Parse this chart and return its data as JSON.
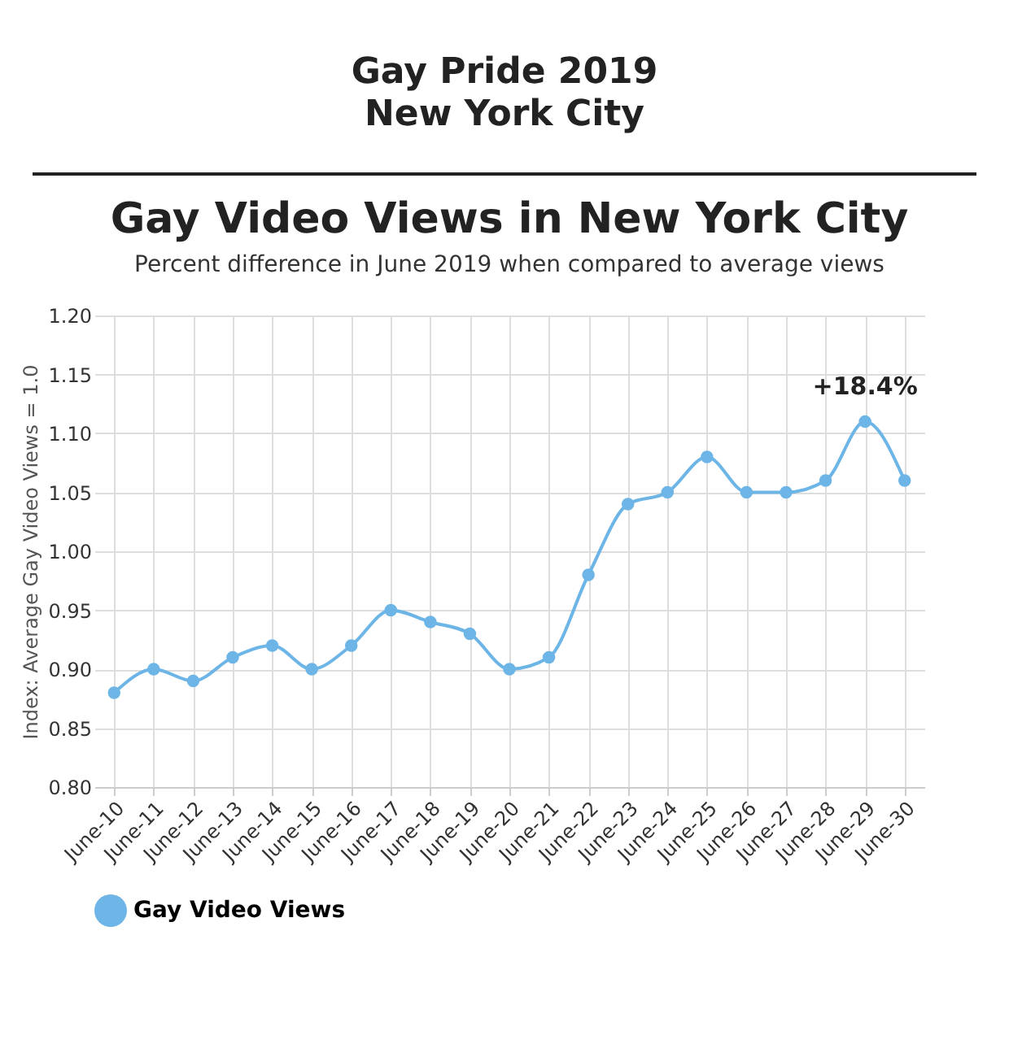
{
  "chart_data": {
    "type": "line",
    "title": "Gay Video Views in New York City",
    "subtitle": "Percent difference in June 2019 when compared to average views",
    "ylabel": "Index: Average Gay Video Views = 1.0",
    "annotations": [
      "Gay Pride 2019\nNew York City",
      {
        "text": "+18.4%",
        "x": "June-29",
        "y": 1.11
      }
    ],
    "categories": [
      "June-10",
      "June-11",
      "June-12",
      "June-13",
      "June-14",
      "June-15",
      "June-16",
      "June-17",
      "June-18",
      "June-19",
      "June-20",
      "June-21",
      "June-22",
      "June-23",
      "June-24",
      "June-25",
      "June-26",
      "June-27",
      "June-28",
      "June-29",
      "June-30"
    ],
    "series": [
      {
        "name": "Gay Video Views",
        "color": "#6cb5e6",
        "values": [
          0.88,
          0.9,
          0.89,
          0.91,
          0.92,
          0.9,
          0.92,
          0.95,
          0.94,
          0.93,
          0.9,
          0.91,
          0.98,
          1.04,
          1.05,
          1.08,
          1.05,
          1.05,
          1.06,
          1.11,
          1.06
        ]
      }
    ],
    "ylim": [
      0.8,
      1.2
    ],
    "yticks": [
      {
        "value": 0.8,
        "label": "0.80"
      },
      {
        "value": 0.85,
        "label": "0.85"
      },
      {
        "value": 0.9,
        "label": "0.90"
      },
      {
        "value": 0.95,
        "label": "0.95"
      },
      {
        "value": 1.0,
        "label": "1.00"
      },
      {
        "value": 1.05,
        "label": "1.05"
      },
      {
        "value": 1.1,
        "label": "1.10"
      },
      {
        "value": 1.15,
        "label": "1.15"
      },
      {
        "value": 1.2,
        "label": "1.20"
      }
    ],
    "grid": true,
    "legend": "bottom",
    "marker": "circle",
    "line_style": "solid"
  }
}
